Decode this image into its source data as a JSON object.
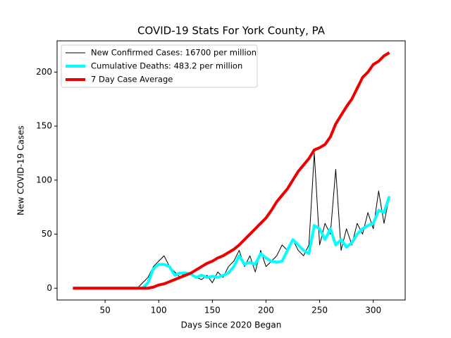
{
  "chart_data": {
    "type": "line",
    "title": "COVID-19 Stats For York County, PA",
    "x_label": "Days Since 2020 Began",
    "y_label": "New COVID-19 Cases",
    "x": [
      20,
      25,
      30,
      35,
      40,
      45,
      50,
      55,
      60,
      65,
      70,
      75,
      80,
      85,
      90,
      95,
      100,
      105,
      110,
      115,
      120,
      125,
      130,
      135,
      140,
      145,
      150,
      155,
      160,
      165,
      170,
      175,
      180,
      185,
      190,
      195,
      200,
      205,
      210,
      215,
      220,
      225,
      230,
      235,
      240,
      245,
      250,
      255,
      260,
      265,
      270,
      275,
      280,
      285,
      290,
      295,
      300,
      305,
      310,
      315
    ],
    "series": [
      {
        "name": "New Confirmed Cases: 16700 per million",
        "color": "#000000",
        "width": 1,
        "values": [
          0,
          0,
          0,
          0,
          0,
          0,
          0,
          0,
          0,
          0,
          0,
          0,
          0,
          5,
          10,
          20,
          25,
          30,
          20,
          15,
          10,
          15,
          12,
          10,
          8,
          12,
          5,
          15,
          10,
          20,
          25,
          35,
          20,
          30,
          15,
          35,
          20,
          25,
          30,
          40,
          35,
          45,
          35,
          30,
          40,
          125,
          40,
          60,
          50,
          110,
          35,
          55,
          40,
          60,
          50,
          70,
          55,
          90,
          60,
          85
        ]
      },
      {
        "name": "Cumulative Deaths: 483.2 per million",
        "color": "#00ffff",
        "width": 4,
        "values": [
          0,
          0,
          0,
          0,
          0,
          0,
          0,
          0,
          0,
          0,
          0,
          0,
          0,
          0,
          5,
          18,
          22,
          22,
          20,
          12,
          14,
          14,
          13,
          10,
          12,
          10,
          11,
          10,
          12,
          14,
          20,
          30,
          22,
          24,
          22,
          32,
          28,
          25,
          24,
          25,
          35,
          45,
          40,
          35,
          32,
          58,
          55,
          45,
          55,
          40,
          45,
          38,
          42,
          50,
          55,
          58,
          60,
          72,
          70,
          85
        ]
      },
      {
        "name": "7 Day Case Average",
        "color": "#ee0000",
        "width": 4,
        "values": [
          0,
          0,
          0,
          0,
          0,
          0,
          0,
          0,
          0,
          0,
          0,
          0,
          0,
          0,
          0,
          1,
          3,
          4,
          6,
          8,
          10,
          12,
          14,
          17,
          20,
          23,
          25,
          28,
          30,
          33,
          36,
          40,
          45,
          50,
          55,
          60,
          65,
          72,
          80,
          86,
          92,
          100,
          108,
          114,
          120,
          128,
          130,
          133,
          140,
          152,
          160,
          168,
          175,
          185,
          195,
          200,
          207,
          210,
          215,
          218
        ]
      }
    ],
    "xlim": [
      5.25,
      329.75
    ],
    "ylim": [
      -10.9,
      228.9
    ],
    "xticks": [
      50,
      100,
      150,
      200,
      250,
      300
    ],
    "yticks": [
      0,
      50,
      100,
      150,
      200
    ],
    "legend": "upper left"
  }
}
